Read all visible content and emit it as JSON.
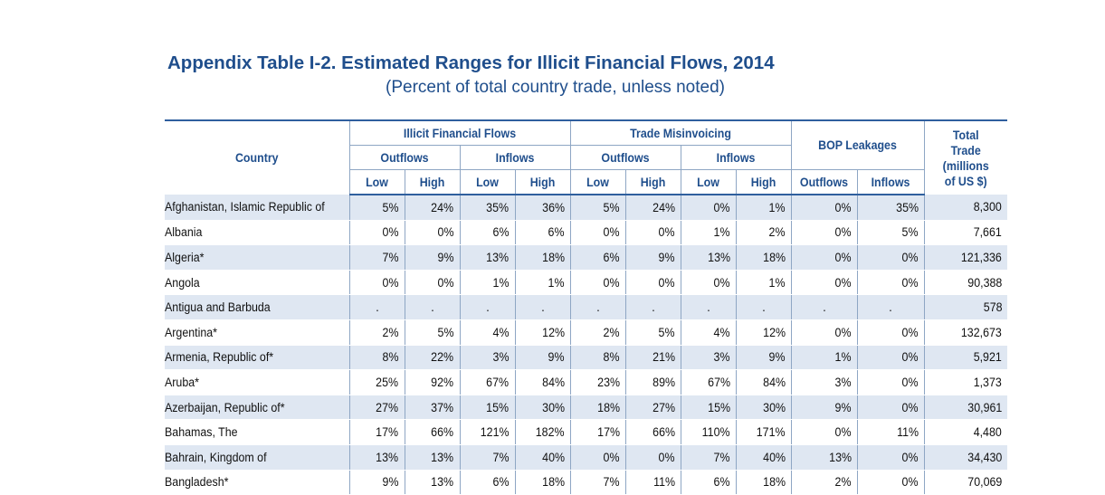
{
  "title": "Appendix Table I-2. Estimated Ranges for Illicit Financial Flows, 2014",
  "subtitle": "(Percent of total country trade, unless noted)",
  "headers": {
    "country": "Country",
    "iff": "Illicit Financial Flows",
    "trade_misinvoicing": "Trade Misinvoicing",
    "bop_leakages": "BOP Leakages",
    "total_trade": "Total Trade (millions of US $)",
    "outflows": "Outflows",
    "inflows": "Inflows",
    "low": "Low",
    "high": "High"
  },
  "rows": [
    {
      "country": "Afghanistan, Islamic Republic of",
      "values": [
        "5%",
        "24%",
        "35%",
        "36%",
        "5%",
        "24%",
        "0%",
        "1%",
        "0%",
        "35%",
        "8,300"
      ]
    },
    {
      "country": "Albania",
      "values": [
        "0%",
        "0%",
        "6%",
        "6%",
        "0%",
        "0%",
        "1%",
        "2%",
        "0%",
        "5%",
        "7,661"
      ]
    },
    {
      "country": "Algeria*",
      "values": [
        "7%",
        "9%",
        "13%",
        "18%",
        "6%",
        "9%",
        "13%",
        "18%",
        "0%",
        "0%",
        "121,336"
      ]
    },
    {
      "country": "Angola",
      "values": [
        "0%",
        "0%",
        "1%",
        "1%",
        "0%",
        "0%",
        "0%",
        "1%",
        "0%",
        "0%",
        "90,388"
      ]
    },
    {
      "country": "Antigua and Barbuda",
      "values": [
        ".",
        ".",
        ".",
        ".",
        ".",
        ".",
        ".",
        ".",
        ".",
        ".",
        "578"
      ]
    },
    {
      "country": "Argentina*",
      "values": [
        "2%",
        "5%",
        "4%",
        "12%",
        "2%",
        "5%",
        "4%",
        "12%",
        "0%",
        "0%",
        "132,673"
      ]
    },
    {
      "country": "Armenia, Republic of*",
      "values": [
        "8%",
        "22%",
        "3%",
        "9%",
        "8%",
        "21%",
        "3%",
        "9%",
        "1%",
        "0%",
        "5,921"
      ]
    },
    {
      "country": "Aruba*",
      "values": [
        "25%",
        "92%",
        "67%",
        "84%",
        "23%",
        "89%",
        "67%",
        "84%",
        "3%",
        "0%",
        "1,373"
      ]
    },
    {
      "country": "Azerbaijan, Republic of*",
      "values": [
        "27%",
        "37%",
        "15%",
        "30%",
        "18%",
        "27%",
        "15%",
        "30%",
        "9%",
        "0%",
        "30,961"
      ]
    },
    {
      "country": "Bahamas, The",
      "values": [
        "17%",
        "66%",
        "121%",
        "182%",
        "17%",
        "66%",
        "110%",
        "171%",
        "0%",
        "11%",
        "4,480"
      ]
    },
    {
      "country": "Bahrain, Kingdom of",
      "values": [
        "13%",
        "13%",
        "7%",
        "40%",
        "0%",
        "0%",
        "7%",
        "40%",
        "13%",
        "0%",
        "34,430"
      ]
    },
    {
      "country": "Bangladesh*",
      "values": [
        "9%",
        "13%",
        "6%",
        "18%",
        "7%",
        "11%",
        "6%",
        "18%",
        "2%",
        "0%",
        "70,069"
      ]
    }
  ]
}
